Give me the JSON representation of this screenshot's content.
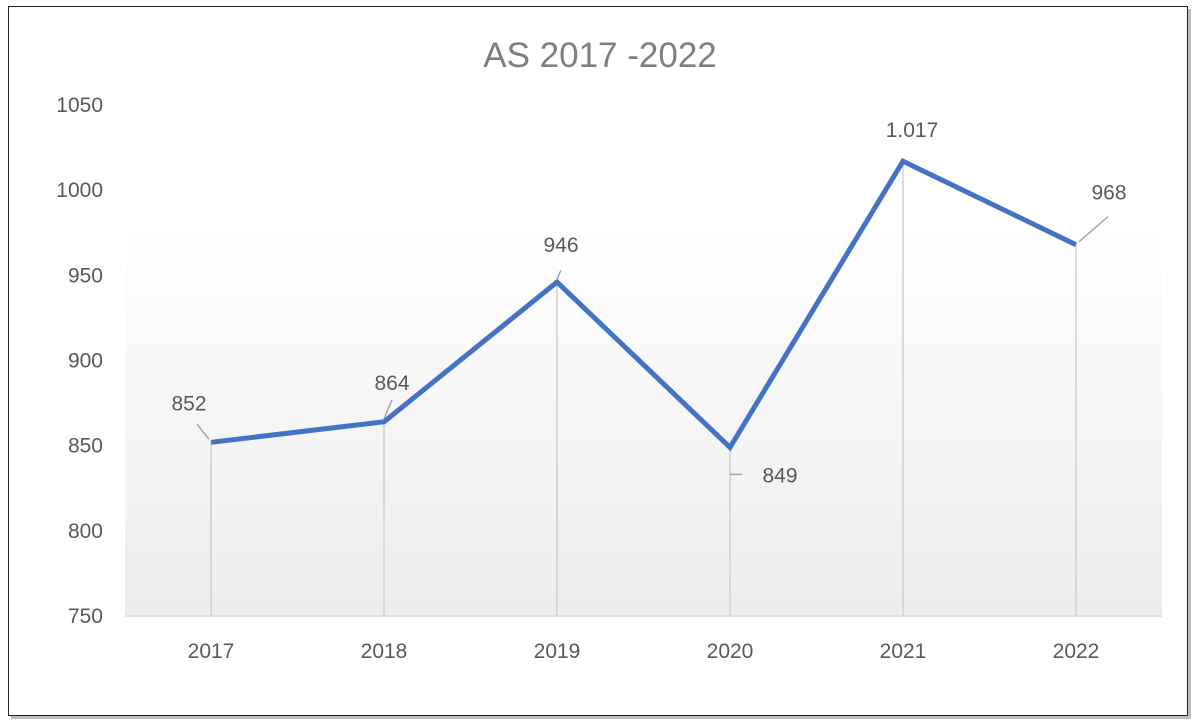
{
  "chart_data": {
    "type": "line",
    "title": "AS 2017 -2022",
    "categories": [
      "2017",
      "2018",
      "2019",
      "2020",
      "2021",
      "2022"
    ],
    "series": [
      {
        "values": [
          852,
          864,
          946,
          849,
          1017,
          968
        ],
        "data_labels": [
          "852",
          "864",
          "946",
          "849",
          "1.017",
          "968"
        ],
        "color": "#4472c4"
      }
    ],
    "ylim": [
      750,
      1050
    ],
    "yticks": [
      750,
      800,
      850,
      900,
      950,
      1000,
      1050
    ],
    "xlabel": "",
    "ylabel": "",
    "grid": false,
    "drop_lines": true,
    "legend": "none"
  }
}
